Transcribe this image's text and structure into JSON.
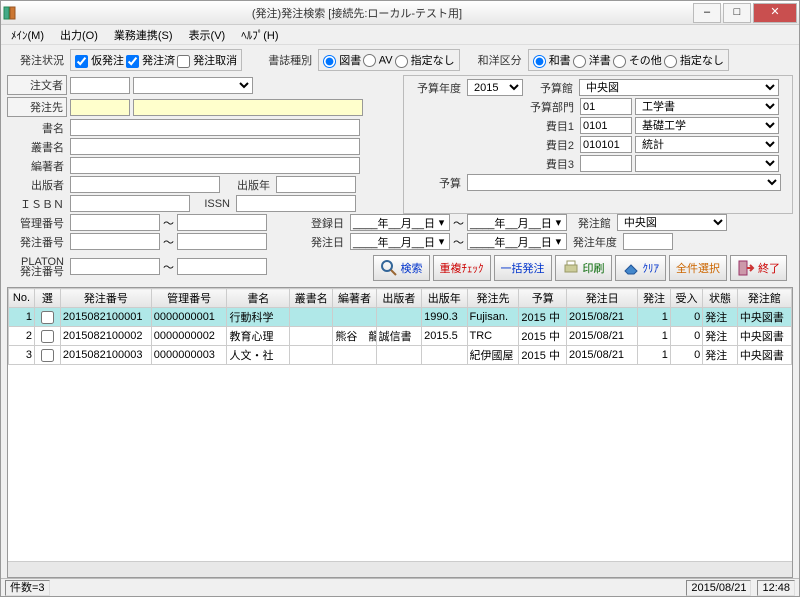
{
  "title": "(発注)発注検索 [接続先:ローカル-テスト用]",
  "menu": {
    "main": "ﾒｲﾝ(M)",
    "out": "出力(O)",
    "biz": "業務連携(S)",
    "view": "表示(V)",
    "help": "ﾍﾙﾌﾟ(H)"
  },
  "status_grp": {
    "label": "発注状況",
    "kari": "仮発注",
    "sumi": "発注済",
    "torikeshi": "発注取消"
  },
  "shoshi_grp": {
    "label": "書誌種別",
    "tosho": "図書",
    "av": "AV",
    "none": "指定なし"
  },
  "wayo_grp": {
    "label": "和洋区分",
    "wa": "和書",
    "yo": "洋書",
    "other": "その他",
    "none": "指定なし"
  },
  "labels": {
    "chumonsha": "注文者",
    "hacchusaki": "発注先",
    "shomei": "書名",
    "soshomei": "叢書名",
    "henchosha": "編著者",
    "shuppansha": "出版者",
    "shuppannen": "出版年",
    "isbn": "ＩＳＢＮ",
    "issn": "ISSN",
    "kanribangou": "管理番号",
    "hacchubangou": "発注番号",
    "platon": "PLATON\n発注番号",
    "tilde": "～",
    "yosannendo": "予算年度",
    "yosankan": "予算館",
    "yosanbumon": "予算部門",
    "himoku1": "費目1",
    "himoku2": "費目2",
    "himoku3": "費目3",
    "yosan": "予算",
    "tourokubi": "登録日",
    "hacchubi": "発注日",
    "hacchukan": "発注館",
    "hacchunendo": "発注年度"
  },
  "vals": {
    "nendo": "2015",
    "yosankan": "中央図",
    "bumon_code": "01",
    "bumon_name": "工学書",
    "himoku1_code": "0101",
    "himoku1_name": "基礎工学",
    "himoku2_code": "010101",
    "himoku2_name": "統計",
    "hacchukan": "中央図",
    "date_blank": "____年__月__日"
  },
  "toolbar": {
    "search": "検索",
    "dup": "重複ﾁｪｯｸ",
    "batch": "一括発注",
    "print": "印刷",
    "clear": "ｸﾘｱ",
    "selall": "全件選択",
    "end": "終了"
  },
  "colors": {
    "search": "#0033cc",
    "dup": "#cc0000",
    "batch": "#0033cc",
    "print": "#006600",
    "clear": "#0033cc",
    "selall": "#cc6600",
    "end": "#cc0000"
  },
  "grid": {
    "headers": [
      "No.",
      "選",
      "発注番号",
      "管理番号",
      "書名",
      "叢書名",
      "編著者",
      "出版者",
      "出版年",
      "発注先",
      "予算",
      "発注日",
      "発注",
      "受入",
      "状態",
      "発注館"
    ],
    "widths": [
      24,
      24,
      84,
      70,
      58,
      40,
      40,
      42,
      42,
      48,
      44,
      66,
      30,
      30,
      32,
      50
    ],
    "rows": [
      {
        "sel": true,
        "c": [
          "1",
          "",
          "2015082100001",
          "0000000001",
          "行動科学",
          "",
          "",
          "",
          "1990.3",
          "Fujisan.",
          "2015 中",
          "2015/08/21",
          "1",
          "0",
          "発注",
          "中央図書"
        ]
      },
      {
        "sel": false,
        "c": [
          "2",
          "",
          "2015082100002",
          "0000000002",
          "教育心理",
          "",
          "熊谷　龍",
          "誠信書",
          "2015.5",
          "TRC",
          "2015 中",
          "2015/08/21",
          "1",
          "0",
          "発注",
          "中央図書"
        ]
      },
      {
        "sel": false,
        "c": [
          "3",
          "",
          "2015082100003",
          "0000000003",
          "人文・社",
          "",
          "",
          "",
          "",
          "紀伊國屋",
          "2015 中",
          "2015/08/21",
          "1",
          "0",
          "発注",
          "中央図書"
        ]
      }
    ]
  },
  "status": {
    "count": "件数=3",
    "date": "2015/08/21",
    "time": "12:48"
  }
}
